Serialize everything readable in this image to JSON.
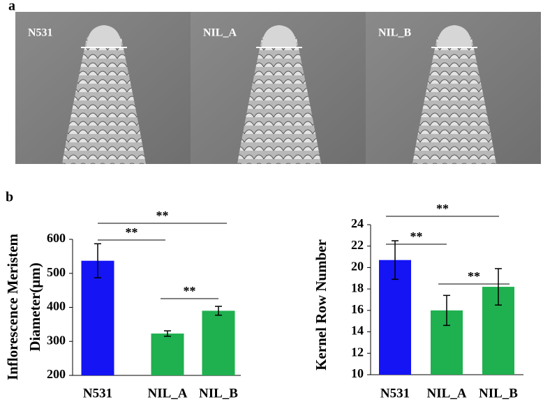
{
  "panel_a": {
    "label": "a",
    "images": [
      "N531",
      "NIL_A",
      "NIL_B"
    ]
  },
  "panel_b": {
    "label": "b"
  },
  "chart_data": [
    {
      "type": "bar",
      "ylabel": [
        "Inflorescence Meristem",
        "Diameter(μm)"
      ],
      "categories": [
        "N531",
        "NIL_A",
        "NIL_B"
      ],
      "values": [
        537,
        323,
        390
      ],
      "errors": [
        50,
        8,
        13
      ],
      "colors": [
        "#1414f5",
        "#1fb04f",
        "#1fb04f"
      ],
      "ylim": [
        200,
        600
      ],
      "yticks": [
        200,
        300,
        400,
        500,
        600
      ],
      "significance": [
        "**",
        "**",
        "**"
      ]
    },
    {
      "type": "bar",
      "ylabel": [
        "Kernel Row Number"
      ],
      "categories": [
        "N531",
        "NIL_A",
        "NIL_B"
      ],
      "values": [
        20.7,
        16.0,
        18.2
      ],
      "errors": [
        1.8,
        1.4,
        1.7
      ],
      "colors": [
        "#1414f5",
        "#1fb04f",
        "#1fb04f"
      ],
      "ylim": [
        10,
        24
      ],
      "yticks": [
        10,
        12,
        14,
        16,
        18,
        20,
        22,
        24
      ],
      "significance": [
        "**",
        "**",
        "**"
      ]
    }
  ]
}
